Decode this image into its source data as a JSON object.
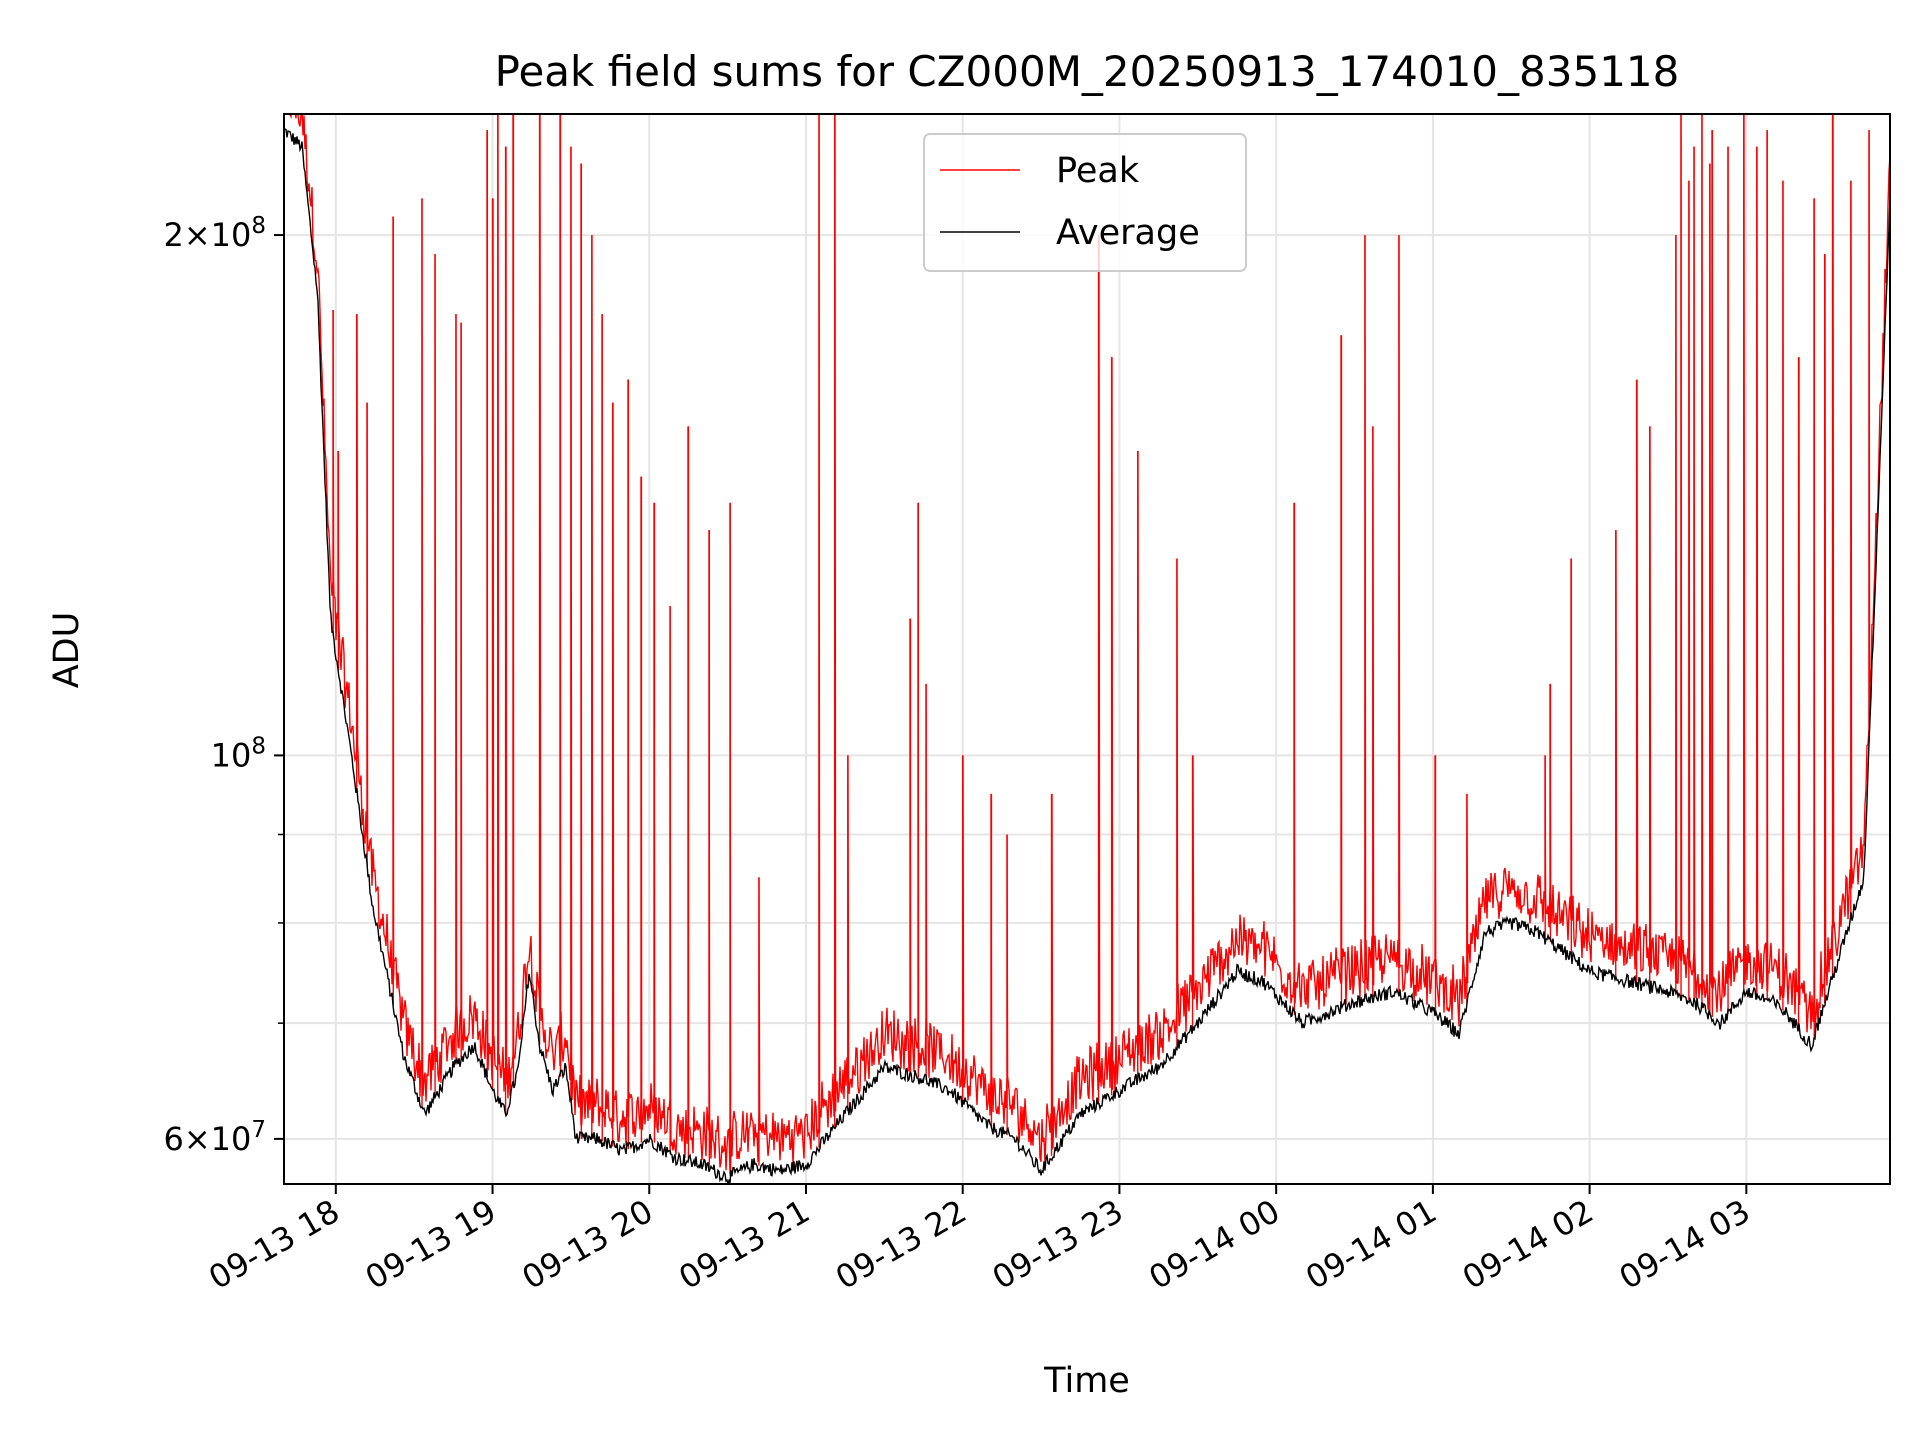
{
  "chart_data": {
    "type": "line",
    "title": "Peak field sums for CZ000M_20250913_174010_835118",
    "xlabel": "Time",
    "ylabel": "ADU",
    "x_scale": "time",
    "y_scale": "log",
    "xlim": [
      "2025-09-13T17:40:10",
      "2025-09-14T03:55:00"
    ],
    "ylim": [
      56500000,
      235000000
    ],
    "grid": true,
    "legend": {
      "placement": "top-center",
      "entries": [
        "Peak",
        "Average"
      ]
    },
    "x_ticks": [
      {
        "value": "2025-09-13T18:00:00",
        "label": "09-13 18"
      },
      {
        "value": "2025-09-13T19:00:00",
        "label": "09-13 19"
      },
      {
        "value": "2025-09-13T20:00:00",
        "label": "09-13 20"
      },
      {
        "value": "2025-09-13T21:00:00",
        "label": "09-13 21"
      },
      {
        "value": "2025-09-13T22:00:00",
        "label": "09-13 22"
      },
      {
        "value": "2025-09-13T23:00:00",
        "label": "09-13 23"
      },
      {
        "value": "2025-09-14T00:00:00",
        "label": "09-14 00"
      },
      {
        "value": "2025-09-14T01:00:00",
        "label": "09-14 01"
      },
      {
        "value": "2025-09-14T02:00:00",
        "label": "09-14 02"
      },
      {
        "value": "2025-09-14T03:00:00",
        "label": "09-14 03"
      }
    ],
    "y_major_ticks": [
      {
        "value": 60000000,
        "mantissa": "6",
        "exp": "7"
      },
      {
        "value": 100000000,
        "mantissa": "",
        "exp": "8"
      },
      {
        "value": 200000000,
        "mantissa": "2",
        "exp": "8"
      }
    ],
    "y_minor_ticks": [
      70000000,
      80000000,
      90000000
    ],
    "series": [
      {
        "name": "Average",
        "color": "#000000",
        "x": [
          "2025-09-13T17:40:10",
          "2025-09-13T17:47:00",
          "2025-09-13T17:53:00",
          "2025-09-13T17:58:00",
          "2025-09-13T18:06:00",
          "2025-09-13T18:14:00",
          "2025-09-13T18:26:00",
          "2025-09-13T18:34:00",
          "2025-09-13T18:45:00",
          "2025-09-13T18:53:00",
          "2025-09-13T19:00:00",
          "2025-09-13T19:05:00",
          "2025-09-13T19:10:00",
          "2025-09-13T19:14:00",
          "2025-09-13T19:18:00",
          "2025-09-13T19:23:00",
          "2025-09-13T19:28:00",
          "2025-09-13T19:32:00",
          "2025-09-13T19:40:00",
          "2025-09-13T19:50:00",
          "2025-09-13T20:00:00",
          "2025-09-13T20:10:00",
          "2025-09-13T20:20:00",
          "2025-09-13T20:30:00",
          "2025-09-13T20:40:00",
          "2025-09-13T20:50:00",
          "2025-09-13T21:00:00",
          "2025-09-13T21:15:00",
          "2025-09-13T21:30:00",
          "2025-09-13T21:45:00",
          "2025-09-13T21:55:00",
          "2025-09-13T22:10:00",
          "2025-09-13T22:20:00",
          "2025-09-13T22:30:00",
          "2025-09-13T22:45:00",
          "2025-09-13T23:00:00",
          "2025-09-13T23:15:00",
          "2025-09-13T23:30:00",
          "2025-09-13T23:45:00",
          "2025-09-13T23:55:00",
          "2025-09-14T00:10:00",
          "2025-09-14T00:30:00",
          "2025-09-14T00:45:00",
          "2025-09-14T01:00:00",
          "2025-09-14T01:10:00",
          "2025-09-14T01:20:00",
          "2025-09-14T01:30:00",
          "2025-09-14T01:40:00",
          "2025-09-14T02:00:00",
          "2025-09-14T02:15:00",
          "2025-09-14T02:30:00",
          "2025-09-14T02:40:00",
          "2025-09-14T02:50:00",
          "2025-09-14T03:00:00",
          "2025-09-14T03:10:00",
          "2025-09-14T03:15:00",
          "2025-09-14T03:25:00",
          "2025-09-14T03:35:00",
          "2025-09-14T03:45:00",
          "2025-09-14T03:55:00"
        ],
        "y": [
          230000000,
          225000000,
          185000000,
          120000000,
          100000000,
          82000000,
          67000000,
          62000000,
          66000000,
          68000000,
          64000000,
          62000000,
          66000000,
          75000000,
          68000000,
          64000000,
          66000000,
          60000000,
          60000000,
          59000000,
          60000000,
          58500000,
          58000000,
          57000000,
          58000000,
          57500000,
          58000000,
          62000000,
          66000000,
          65000000,
          64000000,
          61000000,
          60000000,
          57500000,
          62000000,
          64000000,
          66000000,
          70000000,
          75000000,
          74000000,
          70000000,
          72000000,
          73000000,
          71000000,
          69000000,
          79000000,
          80000000,
          79000000,
          75000000,
          74000000,
          73000000,
          72000000,
          70000000,
          73000000,
          72000000,
          71000000,
          68000000,
          76000000,
          85000000,
          210000000
        ]
      },
      {
        "name": "Peak",
        "color": "#ff0000",
        "spike_times": [
          "2025-09-13T17:59:00",
          "2025-09-13T18:01:00",
          "2025-09-13T18:08:00",
          "2025-09-13T18:12:00",
          "2025-09-13T18:22:00",
          "2025-09-13T18:33:00",
          "2025-09-13T18:38:00",
          "2025-09-13T18:46:00",
          "2025-09-13T18:48:00",
          "2025-09-13T18:58:00",
          "2025-09-13T19:00:00",
          "2025-09-13T19:02:00",
          "2025-09-13T19:05:00",
          "2025-09-13T19:08:00",
          "2025-09-13T19:18:00",
          "2025-09-13T19:26:00",
          "2025-09-13T19:30:00",
          "2025-09-13T19:34:00",
          "2025-09-13T19:38:00",
          "2025-09-13T19:42:00",
          "2025-09-13T19:46:00",
          "2025-09-13T19:52:00",
          "2025-09-13T19:57:00",
          "2025-09-13T20:02:00",
          "2025-09-13T20:08:00",
          "2025-09-13T20:15:00",
          "2025-09-13T20:23:00",
          "2025-09-13T20:31:00",
          "2025-09-13T20:42:00",
          "2025-09-13T21:05:00",
          "2025-09-13T21:11:00",
          "2025-09-13T21:16:00",
          "2025-09-13T21:40:00",
          "2025-09-13T21:43:00",
          "2025-09-13T21:46:00",
          "2025-09-13T22:00:00",
          "2025-09-13T22:11:00",
          "2025-09-13T22:17:00",
          "2025-09-13T22:34:00",
          "2025-09-13T22:52:00",
          "2025-09-13T22:57:00",
          "2025-09-13T23:07:00",
          "2025-09-13T23:22:00",
          "2025-09-13T23:28:00",
          "2025-09-14T00:07:00",
          "2025-09-14T00:25:00",
          "2025-09-14T00:34:00",
          "2025-09-14T00:37:00",
          "2025-09-14T00:47:00",
          "2025-09-14T01:01:00",
          "2025-09-14T01:13:00",
          "2025-09-14T01:43:00",
          "2025-09-14T01:45:00",
          "2025-09-14T01:53:00",
          "2025-09-14T02:10:00",
          "2025-09-14T02:18:00",
          "2025-09-14T02:23:00",
          "2025-09-14T02:33:00",
          "2025-09-14T02:35:00",
          "2025-09-14T02:38:00",
          "2025-09-14T02:40:00",
          "2025-09-14T02:43:00",
          "2025-09-14T02:46:00",
          "2025-09-14T02:47:00",
          "2025-09-14T02:53:00",
          "2025-09-14T02:59:00",
          "2025-09-14T03:04:00",
          "03:08",
          "2025-09-14T03:14:00",
          "2025-09-14T03:20:00",
          "2025-09-14T03:26:00",
          "2025-09-14T03:30:00",
          "2025-09-14T03:33:00",
          "2025-09-14T03:40:00",
          "2025-09-14T03:47:00"
        ],
        "spike_values": [
          181000000,
          150000000,
          180000000,
          160000000,
          205000000,
          210000000,
          195000000,
          180000000,
          178000000,
          230000000,
          210000000,
          235000000,
          225000000,
          235000000,
          235000000,
          235000000,
          225000000,
          220000000,
          200000000,
          180000000,
          160000000,
          165000000,
          145000000,
          140000000,
          122000000,
          155000000,
          135000000,
          140000000,
          85000000,
          235000000,
          235000000,
          100000000,
          120000000,
          140000000,
          110000000,
          100000000,
          95000000,
          90000000,
          95000000,
          200000000,
          170000000,
          150000000,
          130000000,
          100000000,
          140000000,
          175000000,
          200000000,
          155000000,
          200000000,
          100000000,
          95000000,
          100000000,
          110000000,
          130000000,
          135000000,
          165000000,
          155000000,
          200000000,
          235000000,
          215000000,
          225000000,
          235000000,
          220000000,
          230000000,
          225000000,
          235000000,
          225000000,
          230000000,
          215000000,
          170000000,
          210000000,
          195000000,
          235000000,
          215000000,
          230000000
        ]
      }
    ]
  }
}
